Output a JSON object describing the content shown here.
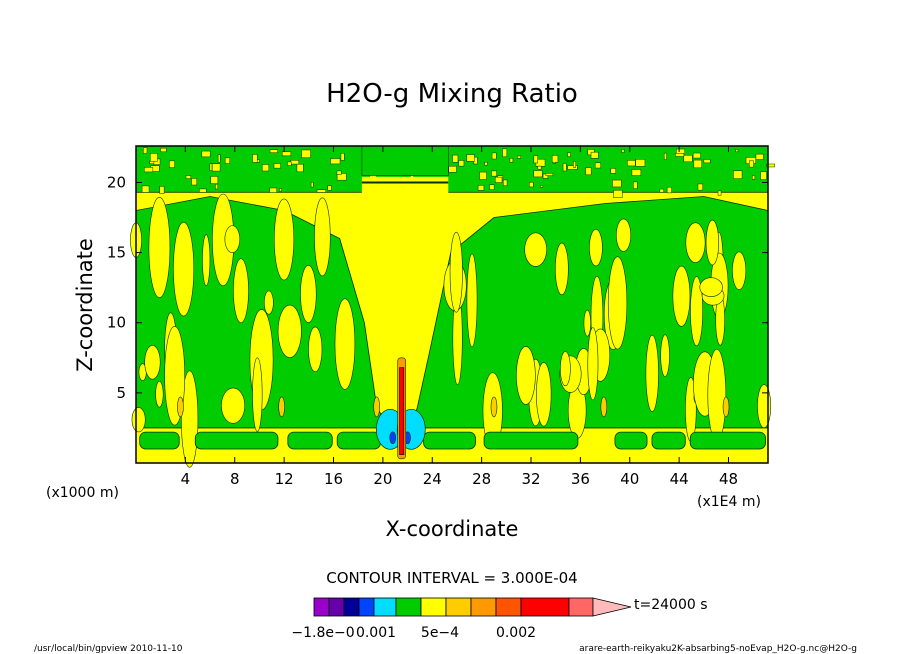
{
  "chart_data": {
    "type": "heatmap",
    "title": "H2O-g Mixing Ratio",
    "xlabel": "X-coordinate",
    "ylabel": "Z-coordinate",
    "x_units_left": "(x1000 m)",
    "x_units_right": "(x1E4 m)",
    "xlim": [
      0,
      51.2
    ],
    "ylim": [
      0,
      22.6
    ],
    "x_ticks": [
      4,
      8,
      12,
      16,
      20,
      24,
      28,
      32,
      36,
      40,
      44,
      48
    ],
    "y_ticks": [
      5,
      10,
      15,
      20
    ],
    "contour_interval_text": "CONTOUR INTERVAL = 3.000E-04",
    "time_text": "t=24000 s",
    "colorbar": {
      "colors": [
        "#9900cc",
        "#6600aa",
        "#000099",
        "#0044ff",
        "#00ddff",
        "#00cc00",
        "#ffff00",
        "#ffcc00",
        "#ff9900",
        "#ff5500",
        "#ff0000",
        "#ff6666",
        "#ffbbbb"
      ],
      "labels": [
        "−1.8e−0",
        "0.001",
        "5e−4",
        "0.002"
      ],
      "overlap_label": "0"
    },
    "background_color": "#ffff00",
    "field_features": [
      {
        "label": "moist-band-near-surface",
        "level_color": "#00cc00",
        "z_range": [
          1.0,
          2.2
        ]
      },
      {
        "label": "upper-moist-layer",
        "level_color": "#00cc00",
        "z_range": [
          19.5,
          22.6
        ]
      },
      {
        "label": "central-dry-column",
        "x_range": [
          18.5,
          24.5
        ],
        "level_color": "#ffff00"
      },
      {
        "label": "convective-core",
        "x": 21.5,
        "z_range": [
          0.5,
          7.5
        ],
        "level_color": "#ff0000"
      }
    ]
  },
  "footer": {
    "left": "/usr/local/bin/gpview   2010-11-10",
    "right": "arare-earth-reikyaku2K-absarbing5-noEvap_H2O-g.nc@H2O-g"
  }
}
